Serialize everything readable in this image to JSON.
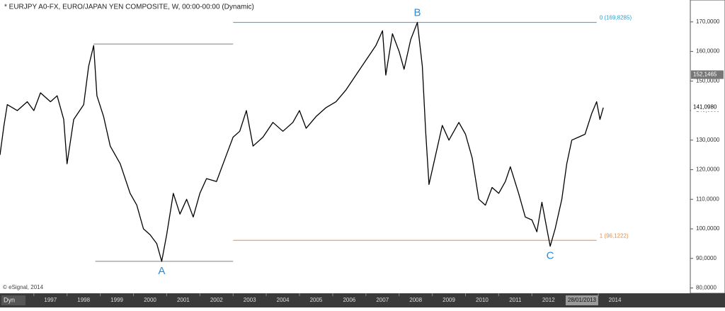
{
  "chart_data": {
    "type": "line",
    "title": "* EURJPY A0-FX, EURO/JAPAN YEN COMPOSITE, W, 00:00-00:00 (Dynamic)",
    "credit": "© eSignal, 2014",
    "mode_label": "Dyn",
    "series": [
      {
        "name": "EURJPY",
        "color": "#000000",
        "x": [
          1995.98,
          1996.1,
          1996.2,
          1996.5,
          1996.8,
          1997.0,
          1997.2,
          1997.5,
          1997.7,
          1997.9,
          1998.0,
          1998.2,
          1998.5,
          1998.65,
          1998.8,
          1998.9,
          1999.1,
          1999.3,
          1999.6,
          1999.9,
          2000.1,
          2000.3,
          2000.5,
          2000.7,
          2000.85,
          2001.0,
          2001.2,
          2001.4,
          2001.6,
          2001.8,
          2002.0,
          2002.2,
          2002.5,
          2002.8,
          2003.0,
          2003.2,
          2003.4,
          2003.6,
          2003.9,
          2004.2,
          2004.5,
          2004.8,
          2005.0,
          2005.2,
          2005.5,
          2005.8,
          2006.1,
          2006.4,
          2006.7,
          2007.0,
          2007.3,
          2007.5,
          2007.6,
          2007.8,
          2008.0,
          2008.15,
          2008.35,
          2008.55,
          2008.7,
          2008.8,
          2008.9,
          2009.1,
          2009.3,
          2009.5,
          2009.8,
          2010.0,
          2010.2,
          2010.4,
          2010.6,
          2010.8,
          2011.0,
          2011.2,
          2011.35,
          2011.6,
          2011.8,
          2012.0,
          2012.15,
          2012.3,
          2012.45,
          2012.55,
          2012.7,
          2012.9,
          2013.05,
          2013.2,
          2013.4,
          2013.6,
          2013.8,
          2013.95,
          2014.05,
          2014.15
        ],
        "values": [
          125,
          135,
          142,
          140,
          143,
          140,
          146,
          143,
          145,
          137,
          122,
          137,
          142,
          155,
          162,
          145,
          138,
          128,
          122,
          112,
          108,
          100,
          98,
          95,
          89,
          98,
          112,
          105,
          110,
          104,
          112,
          117,
          116,
          125,
          131,
          133,
          140,
          128,
          131,
          136,
          133,
          136,
          140,
          134,
          138,
          141,
          143,
          147,
          152,
          157,
          162,
          167,
          152,
          166,
          160,
          154,
          164,
          169.8,
          155,
          133,
          115,
          125,
          135,
          130,
          136,
          132,
          124,
          110,
          108,
          114,
          112,
          116,
          121,
          112,
          104,
          103,
          99,
          109,
          100,
          94.1,
          100,
          110,
          122,
          130,
          131,
          132,
          139,
          143,
          137,
          141
        ]
      }
    ],
    "xlim": [
      1995.98,
      2016.77
    ],
    "ylim": [
      78.2,
      177.4
    ],
    "xticks": [
      {
        "value": 1997,
        "label": "1997"
      },
      {
        "value": 1998,
        "label": "1998"
      },
      {
        "value": 1999,
        "label": "1999"
      },
      {
        "value": 2000,
        "label": "2000"
      },
      {
        "value": 2001,
        "label": "2001"
      },
      {
        "value": 2002,
        "label": "2002"
      },
      {
        "value": 2003,
        "label": "2003"
      },
      {
        "value": 2004,
        "label": "2004"
      },
      {
        "value": 2005,
        "label": "2005"
      },
      {
        "value": 2006,
        "label": "2006"
      },
      {
        "value": 2007,
        "label": "2007"
      },
      {
        "value": 2008,
        "label": "2008"
      },
      {
        "value": 2009,
        "label": "2009"
      },
      {
        "value": 2010,
        "label": "2010"
      },
      {
        "value": 2011,
        "label": "2011"
      },
      {
        "value": 2012,
        "label": "2012"
      },
      {
        "value": 2014,
        "label": "2014"
      }
    ],
    "cursor_date": {
      "value": 2013.08,
      "label": "28/01/2013"
    },
    "yticks": [
      {
        "value": 80,
        "label": "80,0000"
      },
      {
        "value": 90,
        "label": "90,0000"
      },
      {
        "value": 100,
        "label": "100,0000"
      },
      {
        "value": 110,
        "label": "110,0000"
      },
      {
        "value": 120,
        "label": "120,0000"
      },
      {
        "value": 130,
        "label": "130,0000"
      },
      {
        "value": 140,
        "label": "140,0000"
      },
      {
        "value": 150,
        "label": "150,0000"
      },
      {
        "value": 160,
        "label": "160,0000"
      },
      {
        "value": 170,
        "label": "170,0000"
      }
    ],
    "price_markers": [
      {
        "value": 152.1465,
        "label": "152,1465"
      },
      {
        "value": 141.098,
        "label": "141,0980"
      }
    ],
    "levels": [
      {
        "value": 162.5,
        "x": [
          1998.8,
          2003.0
        ],
        "color": "#808080"
      },
      {
        "value": 89,
        "x": [
          1998.85,
          2003.0
        ],
        "color": "#808080"
      },
      {
        "value": 169.8285,
        "x": [
          2003.0,
          2013.95
        ],
        "color": "#2aa0d0",
        "label": "0 (169,8285)"
      },
      {
        "value": 96.1222,
        "x": [
          2003.0,
          2013.95
        ],
        "color": "#f08a3c",
        "label": "1 (96,1222)"
      }
    ],
    "annotations": [
      {
        "text": "A",
        "x": 2000.85,
        "y": 89,
        "position": "below",
        "color": "#2a8ad8"
      },
      {
        "text": "B",
        "x": 2008.55,
        "y": 169.8,
        "position": "above",
        "color": "#2a8ad8"
      },
      {
        "text": "C",
        "x": 2012.55,
        "y": 94.1,
        "position": "below",
        "color": "#2a8ad8"
      }
    ]
  }
}
